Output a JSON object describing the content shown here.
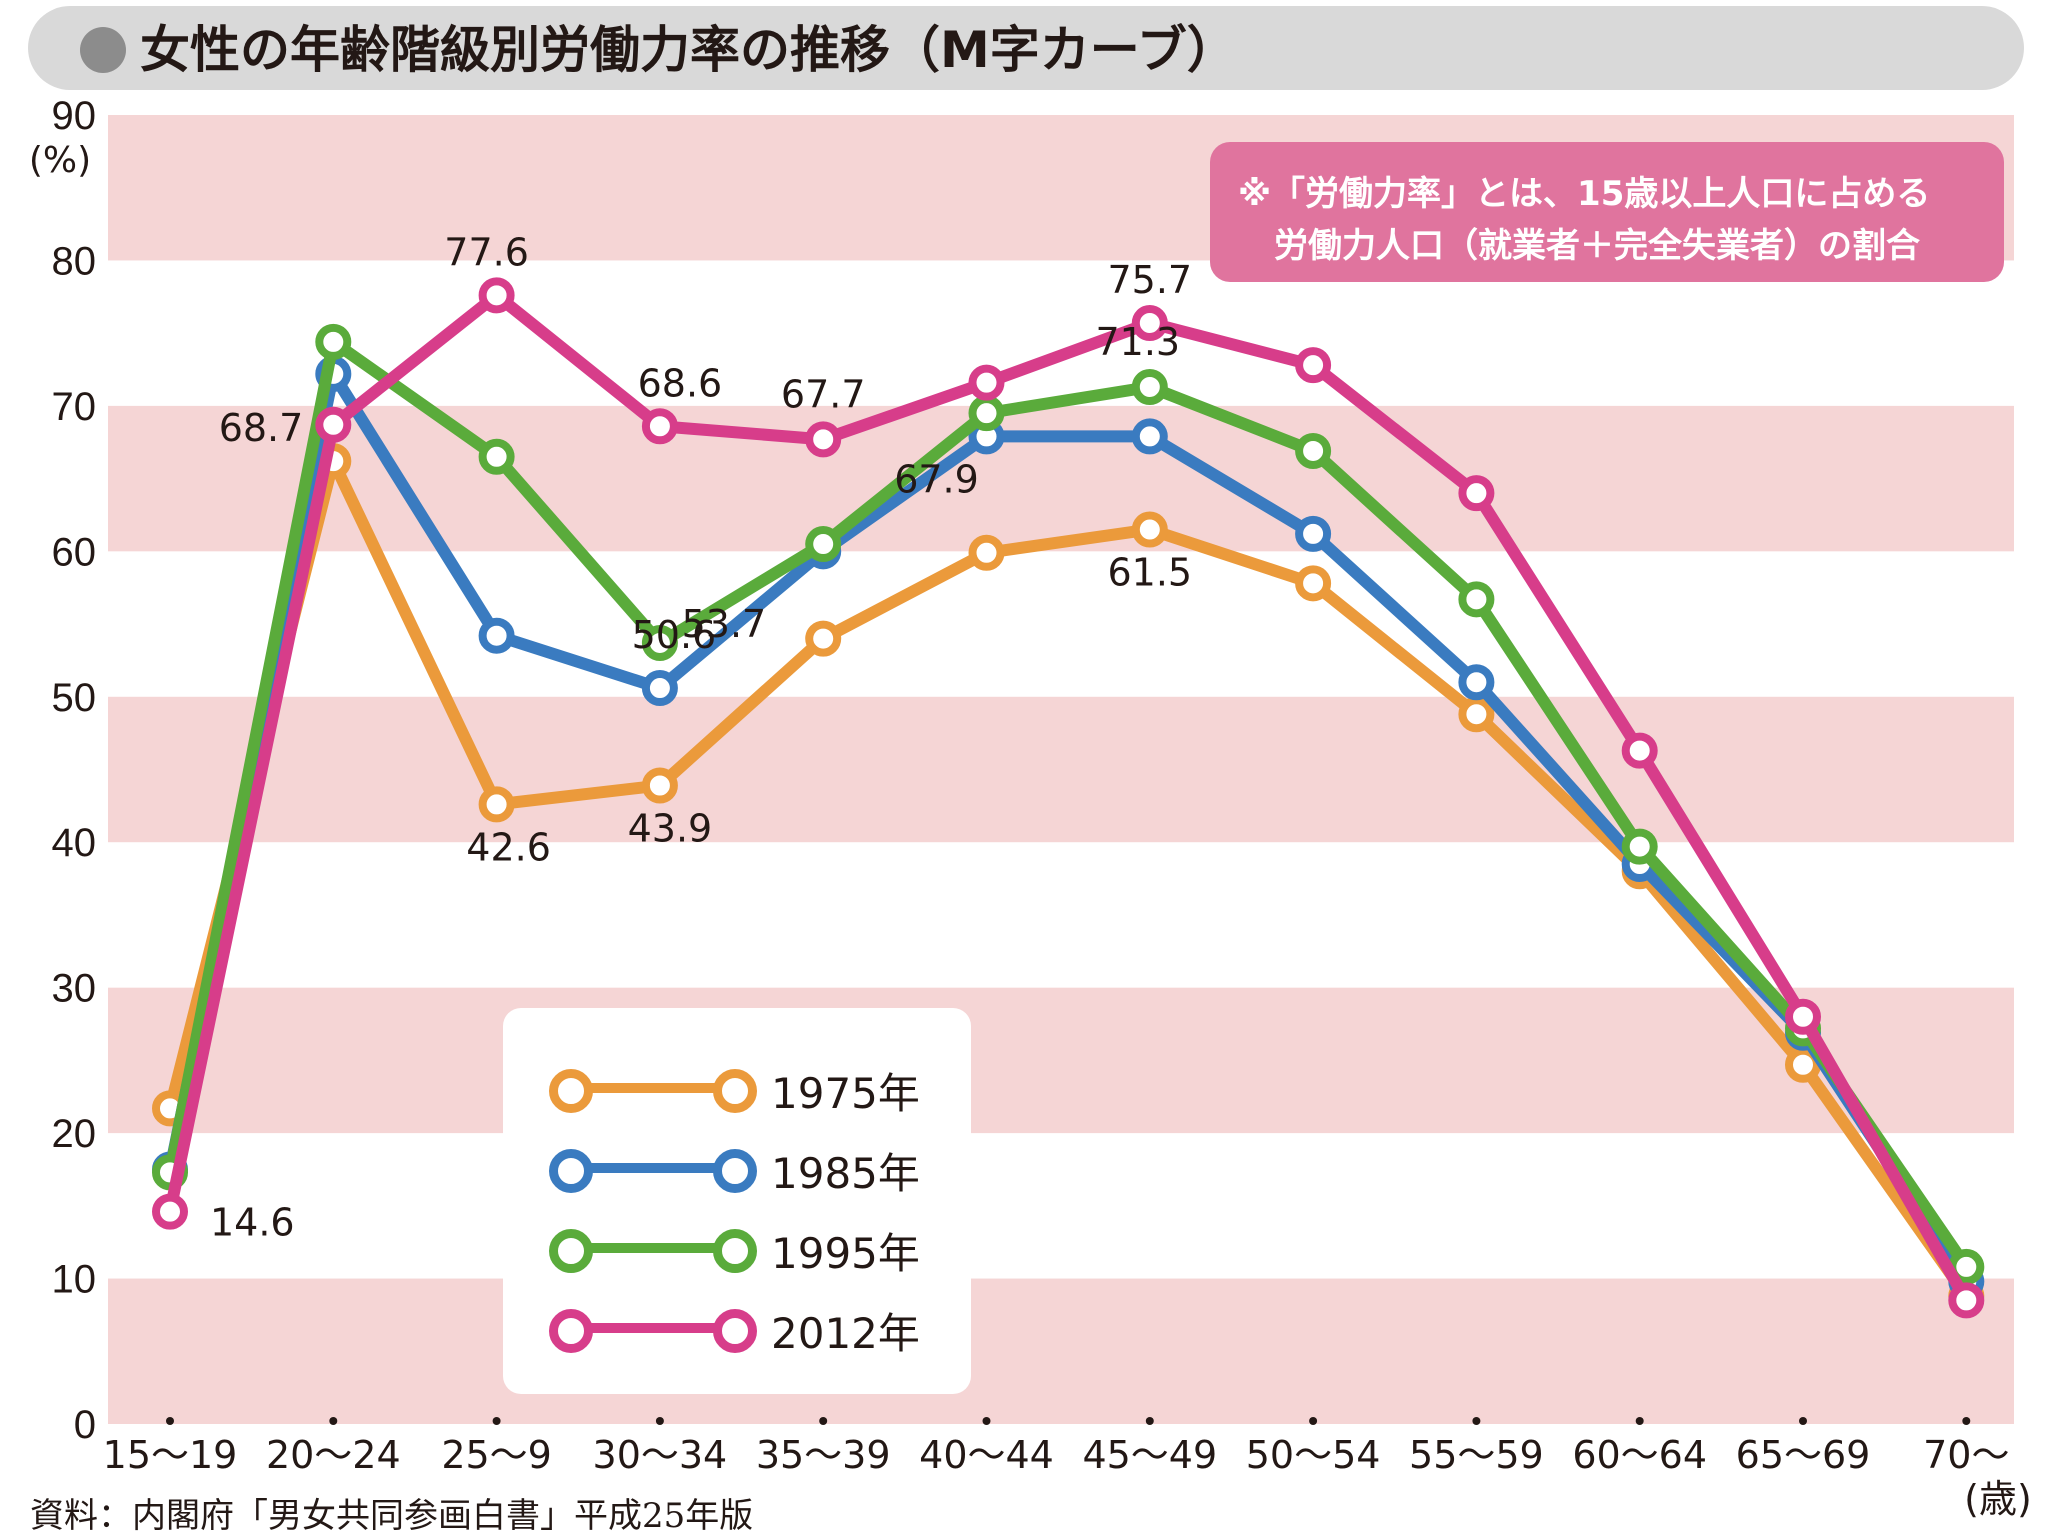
{
  "title": "女性の年齢階級別労働力率の推移（M字カーブ）",
  "note": {
    "line1": "※「労働力率」とは、15歳以上人口に占める",
    "line2": "労働力人口（就業者＋完全失業者）の割合"
  },
  "source": "資料：内閣府「男女共同参画白書」平成25年版",
  "colors": {
    "band": "#f5d5d5",
    "note_bg": "#e0749e",
    "title_bg": "#d9d9d9"
  },
  "chart_data": {
    "type": "line",
    "categories": [
      "15〜19",
      "20〜24",
      "25〜9",
      "30〜34",
      "35〜39",
      "40〜44",
      "45〜49",
      "50〜54",
      "55〜59",
      "60〜64",
      "65〜69",
      "70〜"
    ],
    "ylim": [
      0,
      90
    ],
    "yticks": [
      0,
      10,
      20,
      30,
      40,
      50,
      60,
      70,
      80,
      90
    ],
    "ylabel": "(%)",
    "xunit": "(歳)",
    "legend_position": "inside-bottom-left",
    "series": [
      {
        "name": "1975年",
        "color": "#eb9a3b",
        "values": [
          21.7,
          66.2,
          42.6,
          43.9,
          54.0,
          59.9,
          61.5,
          57.8,
          48.8,
          38.0,
          24.7,
          8.8
        ]
      },
      {
        "name": "1985年",
        "color": "#3a7bc0",
        "values": [
          17.5,
          72.2,
          54.2,
          50.6,
          60.0,
          67.9,
          67.9,
          61.2,
          51.0,
          38.5,
          26.9,
          9.8
        ]
      },
      {
        "name": "1995年",
        "color": "#5aab3b",
        "values": [
          17.3,
          74.4,
          66.5,
          53.7,
          60.5,
          69.5,
          71.3,
          66.9,
          56.7,
          39.7,
          27.2,
          10.8
        ]
      },
      {
        "name": "2012年",
        "color": "#d73d8a",
        "values": [
          14.6,
          68.7,
          77.6,
          68.6,
          67.7,
          71.6,
          75.7,
          72.8,
          64.0,
          46.3,
          28.0,
          8.5
        ]
      }
    ],
    "annotations": [
      {
        "series": 3,
        "index": 0,
        "text": "14.6"
      },
      {
        "series": 3,
        "index": 1,
        "text": "68.7"
      },
      {
        "series": 3,
        "index": 2,
        "text": "77.6"
      },
      {
        "series": 3,
        "index": 3,
        "text": "68.6"
      },
      {
        "series": 3,
        "index": 4,
        "text": "67.7"
      },
      {
        "series": 3,
        "index": 6,
        "text": "75.7"
      },
      {
        "series": 2,
        "index": 6,
        "text": "71.3"
      },
      {
        "series": 2,
        "index": 3,
        "text": "53.7"
      },
      {
        "series": 1,
        "index": 3,
        "text": "50.6"
      },
      {
        "series": 1,
        "index": 5,
        "text": "67.9"
      },
      {
        "series": 0,
        "index": 2,
        "text": "42.6"
      },
      {
        "series": 0,
        "index": 3,
        "text": "43.9"
      },
      {
        "series": 0,
        "index": 6,
        "text": "61.5"
      }
    ]
  }
}
